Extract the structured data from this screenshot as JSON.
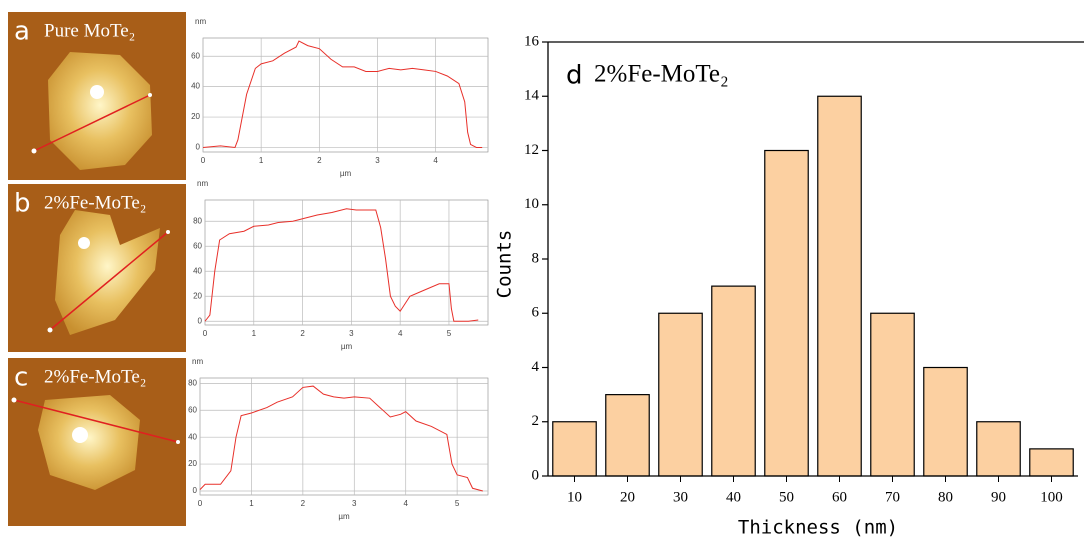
{
  "chart_data": [
    {
      "type": "line",
      "panel": "a",
      "title": "Pure MoTe₂",
      "y_unit": "nm",
      "xlabel": "µm",
      "color": "#e8302a",
      "grid": true,
      "x": [
        0,
        0.3,
        0.55,
        0.6,
        0.75,
        0.9,
        1.0,
        1.2,
        1.4,
        1.6,
        1.65,
        1.8,
        2.0,
        2.2,
        2.4,
        2.6,
        2.8,
        3.0,
        3.2,
        3.4,
        3.6,
        3.8,
        4.0,
        4.2,
        4.4,
        4.5,
        4.55,
        4.6,
        4.7,
        4.8
      ],
      "values": [
        0,
        1,
        0,
        5,
        35,
        52,
        55,
        57,
        62,
        66,
        70,
        67,
        65,
        58,
        53,
        53,
        50,
        50,
        52,
        51,
        52,
        51,
        50,
        47,
        42,
        30,
        10,
        2,
        0,
        0
      ],
      "xlim": [
        0,
        4.9
      ],
      "ylim": [
        -3,
        72
      ],
      "xticks": [
        0,
        1,
        2,
        3,
        4
      ],
      "yticks": [
        0,
        20,
        40,
        60
      ]
    },
    {
      "type": "line",
      "panel": "b",
      "title": "2%Fe-MoTe₂",
      "y_unit": "nm",
      "xlabel": "µm",
      "color": "#e8302a",
      "grid": true,
      "x": [
        0,
        0.1,
        0.2,
        0.3,
        0.5,
        0.8,
        1.0,
        1.3,
        1.5,
        1.8,
        2.0,
        2.3,
        2.6,
        2.9,
        3.1,
        3.5,
        3.6,
        3.7,
        3.8,
        3.9,
        4.0,
        4.2,
        4.5,
        4.8,
        5.0,
        5.05,
        5.1,
        5.4,
        5.6
      ],
      "values": [
        0,
        5,
        40,
        65,
        70,
        72,
        76,
        77,
        79,
        80,
        82,
        85,
        87,
        90,
        89,
        89,
        75,
        50,
        20,
        12,
        8,
        20,
        25,
        30,
        30,
        10,
        0,
        0,
        1
      ],
      "xlim": [
        0,
        5.8
      ],
      "ylim": [
        -3,
        97
      ],
      "xticks": [
        0,
        1,
        2,
        3,
        4,
        5
      ],
      "yticks": [
        0,
        20,
        40,
        60,
        80
      ]
    },
    {
      "type": "line",
      "panel": "c",
      "title": "2%Fe-MoTe₂",
      "y_unit": "nm",
      "xlabel": "µm",
      "color": "#e8302a",
      "grid": true,
      "x": [
        0,
        0.1,
        0.4,
        0.6,
        0.7,
        0.8,
        1.0,
        1.3,
        1.5,
        1.8,
        2.0,
        2.2,
        2.4,
        2.6,
        2.8,
        3.0,
        3.3,
        3.5,
        3.7,
        3.9,
        4.0,
        4.2,
        4.5,
        4.8,
        4.9,
        5.0,
        5.2,
        5.3,
        5.5
      ],
      "values": [
        1,
        5,
        5,
        15,
        40,
        56,
        58,
        62,
        66,
        70,
        77,
        78,
        72,
        70,
        69,
        70,
        69,
        62,
        55,
        57,
        59,
        52,
        48,
        42,
        20,
        12,
        10,
        2,
        0
      ],
      "xlim": [
        0,
        5.6
      ],
      "ylim": [
        -3,
        84
      ],
      "xticks": [
        0,
        1,
        2,
        3,
        4,
        5
      ],
      "yticks": [
        0,
        20,
        40,
        60,
        80
      ]
    },
    {
      "type": "bar",
      "panel": "d",
      "title": "2%Fe-MoTe₂",
      "xlabel": "Thickness (nm)",
      "ylabel": "Counts",
      "color": "#fcd0a1",
      "categories": [
        "10",
        "20",
        "30",
        "40",
        "50",
        "60",
        "70",
        "80",
        "90",
        "100"
      ],
      "values": [
        2,
        3,
        6,
        7,
        12,
        14,
        6,
        4,
        2,
        1
      ],
      "ylim": [
        0,
        16
      ],
      "yticks": [
        0,
        2,
        4,
        6,
        8,
        10,
        12,
        14,
        16
      ]
    }
  ]
}
